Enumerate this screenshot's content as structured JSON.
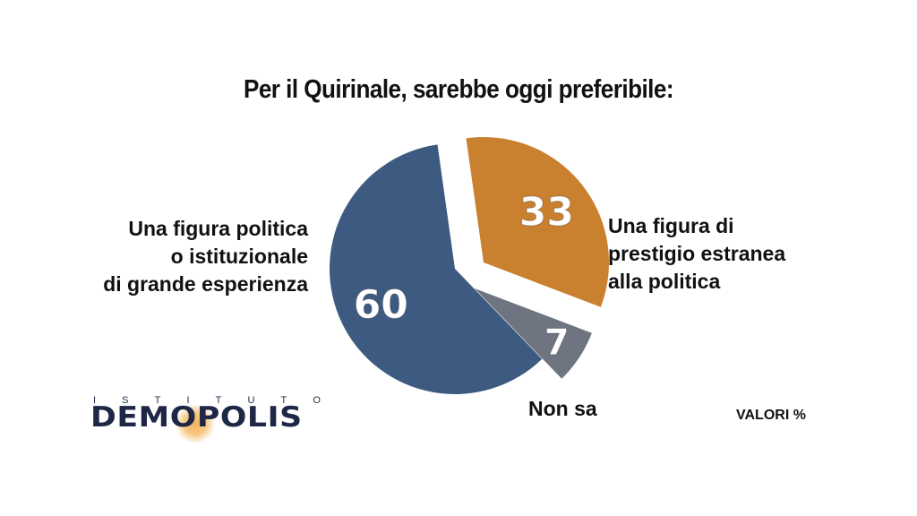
{
  "chart_data": {
    "type": "pie",
    "title": "Per il Quirinale, sarebbe oggi preferibile:",
    "unit_note": "VALORI %",
    "slices": [
      {
        "label": "Una figura politica o istituzionale di grande esperienza",
        "label_lines": [
          "Una figura politica",
          "o istituzionale",
          "di grande esperienza"
        ],
        "value": 60,
        "color": "#3d5a80"
      },
      {
        "label": "Una figura di prestigio estranea alla politica",
        "label_lines": [
          "Una figura di",
          "prestigio estranea",
          "alla politica"
        ],
        "value": 33,
        "color": "#c9802f"
      },
      {
        "label": "Non sa",
        "label_lines": [
          "Non sa"
        ],
        "value": 7,
        "color": "#6e7580"
      }
    ]
  },
  "logo": {
    "top_text": "ISTITUTO",
    "main_text": "DEMOPOLIS"
  }
}
